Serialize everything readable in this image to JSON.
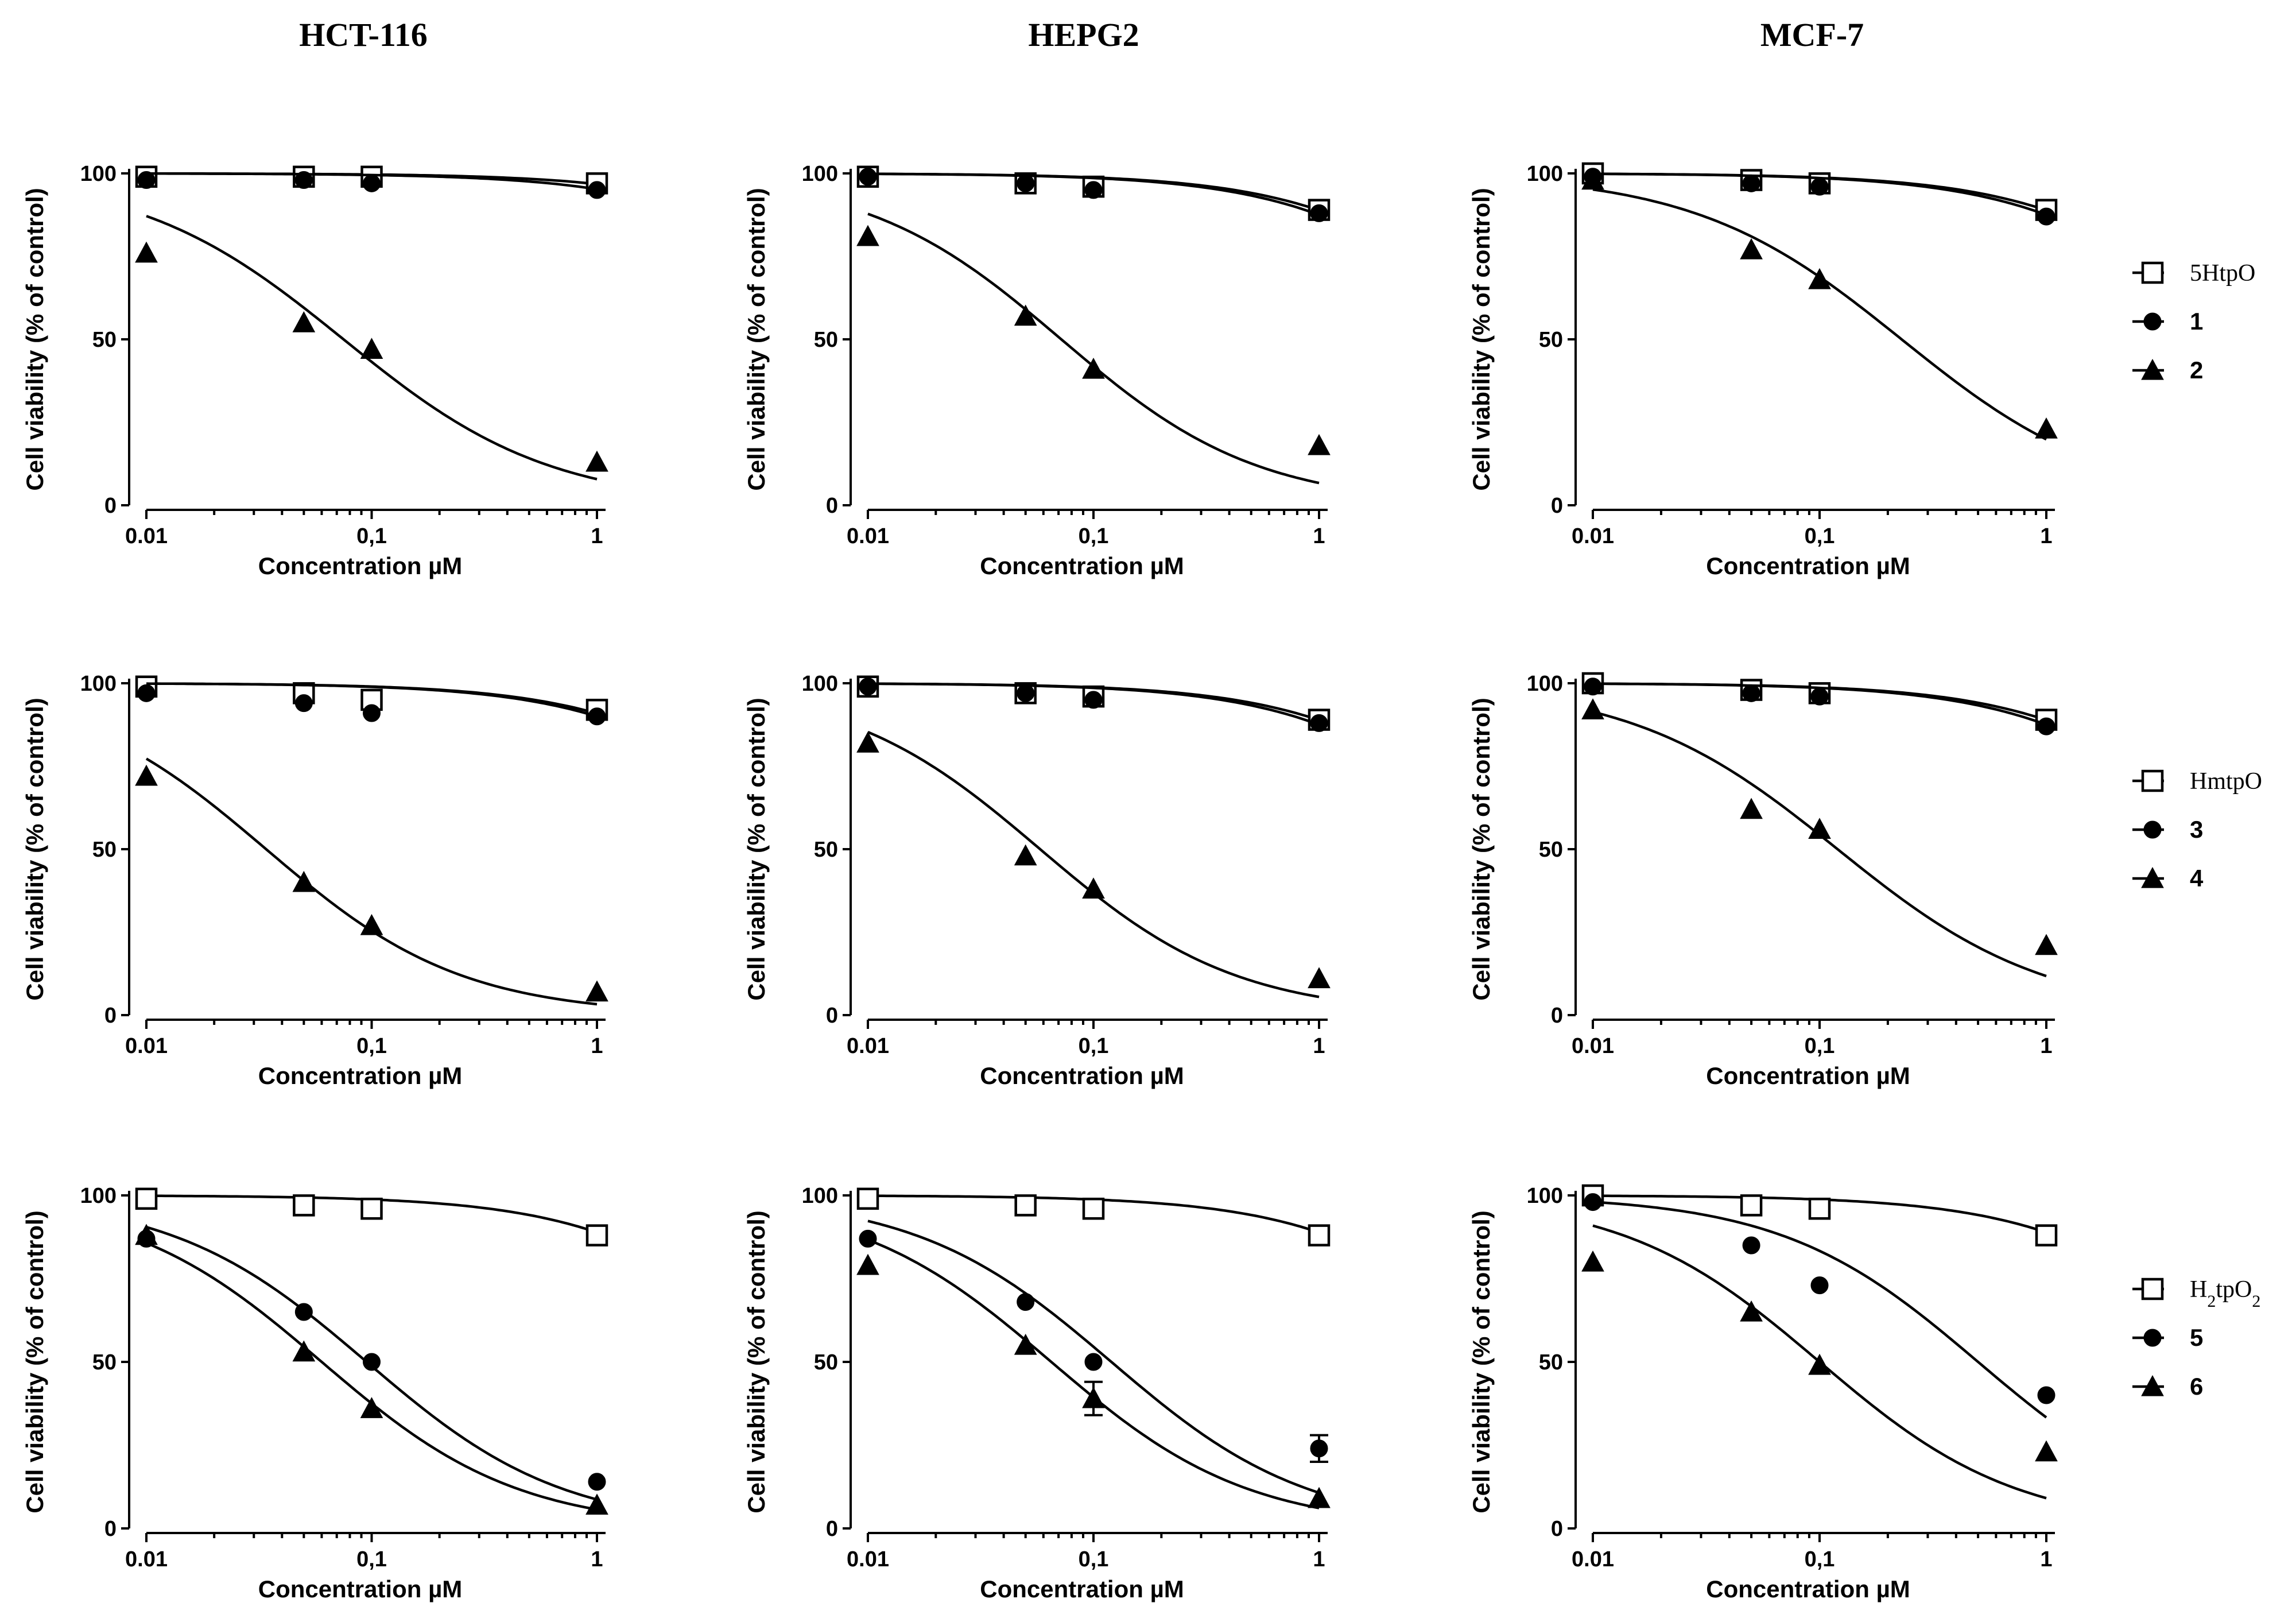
{
  "column_titles": [
    "HCT-116",
    "HEPG2",
    "MCF-7"
  ],
  "legends": [
    {
      "items": [
        {
          "label": "5HtpO",
          "marker": "square"
        },
        {
          "label": "1",
          "marker": "circle"
        },
        {
          "label": "2",
          "marker": "triangle"
        }
      ]
    },
    {
      "items": [
        {
          "label": "HmtpO",
          "marker": "square"
        },
        {
          "label": "3",
          "marker": "circle"
        },
        {
          "label": "4",
          "marker": "triangle"
        }
      ]
    },
    {
      "items": [
        {
          "label": "H2tpO2",
          "label_parts": [
            "H",
            "2",
            "tpO",
            "2"
          ],
          "marker": "square"
        },
        {
          "label": "5",
          "marker": "circle"
        },
        {
          "label": "6",
          "marker": "triangle"
        }
      ]
    }
  ],
  "chart_data": [
    {
      "panel": "HCT-116 / 5HtpO, 1, 2",
      "type": "line",
      "xscale": "log",
      "xlim": [
        0.01,
        1
      ],
      "ylim": [
        0,
        100
      ],
      "xlabel": "Concentration µM",
      "ylabel": "Cell viability (% of control)",
      "xticks": [
        "0.01",
        "0,1",
        "1"
      ],
      "yticks": [
        "0",
        "50",
        "100"
      ],
      "series": [
        {
          "name": "5HtpO",
          "marker": "square",
          "x": [
            0.01,
            0.05,
            0.1,
            1
          ],
          "y": [
            99,
            99,
            99,
            97
          ],
          "fit": {
            "top": 100,
            "ic50": 30,
            "hill": 1
          }
        },
        {
          "name": "1",
          "marker": "circle",
          "x": [
            0.01,
            0.05,
            0.1,
            1
          ],
          "y": [
            98,
            98,
            97,
            95
          ],
          "fit": {
            "top": 100,
            "ic50": 20,
            "hill": 1
          }
        },
        {
          "name": "2",
          "marker": "triangle",
          "x": [
            0.01,
            0.05,
            0.1,
            1
          ],
          "y": [
            76,
            55,
            47,
            13
          ],
          "fit": {
            "top": 100,
            "ic50": 0.075,
            "hill": 0.95
          }
        }
      ]
    },
    {
      "panel": "HEPG2 / 5HtpO, 1, 2",
      "type": "line",
      "xscale": "log",
      "xlim": [
        0.01,
        1
      ],
      "ylim": [
        0,
        100
      ],
      "xlabel": "Concentration µM",
      "ylabel": "Cell viability (% of control)",
      "xticks": [
        "0.01",
        "0,1",
        "1"
      ],
      "yticks": [
        "0",
        "50",
        "100"
      ],
      "series": [
        {
          "name": "5HtpO",
          "marker": "square",
          "x": [
            0.01,
            0.05,
            0.1,
            1
          ],
          "y": [
            99,
            97,
            96,
            89
          ],
          "fit": {
            "top": 100,
            "ic50": 8,
            "hill": 1
          }
        },
        {
          "name": "1",
          "marker": "circle",
          "x": [
            0.01,
            0.05,
            0.1,
            1
          ],
          "y": [
            99,
            97,
            95,
            88
          ],
          "fit": {
            "top": 100,
            "ic50": 7,
            "hill": 1
          }
        },
        {
          "name": "2",
          "marker": "triangle",
          "x": [
            0.01,
            0.05,
            0.1,
            1
          ],
          "y": [
            81,
            57,
            41,
            18
          ],
          "fit": {
            "top": 100,
            "ic50": 0.072,
            "hill": 1.0
          }
        }
      ]
    },
    {
      "panel": "MCF-7 / 5HtpO, 1, 2",
      "type": "line",
      "xscale": "log",
      "xlim": [
        0.01,
        1
      ],
      "ylim": [
        0,
        100
      ],
      "xlabel": "Concentration µM",
      "ylabel": "Cell viability (% of control)",
      "xticks": [
        "0.01",
        "0,1",
        "1"
      ],
      "yticks": [
        "0",
        "50",
        "100"
      ],
      "series": [
        {
          "name": "5HtpO",
          "marker": "square",
          "x": [
            0.01,
            0.05,
            0.1,
            1
          ],
          "y": [
            100,
            98,
            97,
            89
          ],
          "fit": {
            "top": 100,
            "ic50": 8,
            "hill": 1
          }
        },
        {
          "name": "1",
          "marker": "circle",
          "x": [
            0.01,
            0.05,
            0.1,
            1
          ],
          "y": [
            99,
            97,
            96,
            87
          ],
          "fit": {
            "top": 100,
            "ic50": 7,
            "hill": 1
          }
        },
        {
          "name": "2",
          "marker": "triangle",
          "x": [
            0.01,
            0.05,
            0.1,
            1
          ],
          "y": [
            98,
            77,
            68,
            23
          ],
          "fit": {
            "top": 100,
            "ic50": 0.23,
            "hill": 0.95
          }
        }
      ]
    },
    {
      "panel": "HCT-116 / HmtpO, 3, 4",
      "type": "line",
      "xscale": "log",
      "xlim": [
        0.01,
        1
      ],
      "ylim": [
        0,
        100
      ],
      "xlabel": "Concentration µM",
      "ylabel": "Cell viability (% of control)",
      "xticks": [
        "0.01",
        "0,1",
        "1"
      ],
      "yticks": [
        "0",
        "50",
        "100"
      ],
      "series": [
        {
          "name": "HmtpO",
          "marker": "square",
          "x": [
            0.01,
            0.05,
            0.1,
            1
          ],
          "y": [
            99,
            97,
            95,
            92
          ],
          "fit": {
            "top": 100,
            "ic50": 10,
            "hill": 1
          }
        },
        {
          "name": "3",
          "marker": "circle",
          "x": [
            0.01,
            0.05,
            0.1,
            1
          ],
          "y": [
            97,
            94,
            91,
            90
          ],
          "fit": {
            "top": 100,
            "ic50": 9,
            "hill": 1
          }
        },
        {
          "name": "4",
          "marker": "triangle",
          "x": [
            0.01,
            0.05,
            0.1,
            1
          ],
          "y": [
            72,
            40,
            27,
            7
          ],
          "fit": {
            "top": 100,
            "ic50": 0.034,
            "hill": 1.0
          }
        }
      ]
    },
    {
      "panel": "HEPG2 / HmtpO, 3, 4",
      "type": "line",
      "xscale": "log",
      "xlim": [
        0.01,
        1
      ],
      "ylim": [
        0,
        100
      ],
      "xlabel": "Concentration µM",
      "ylabel": "Cell viability (% of control)",
      "xticks": [
        "0.01",
        "0,1",
        "1"
      ],
      "yticks": [
        "0",
        "50",
        "100"
      ],
      "series": [
        {
          "name": "HmtpO",
          "marker": "square",
          "x": [
            0.01,
            0.05,
            0.1,
            1
          ],
          "y": [
            99,
            97,
            96,
            89
          ],
          "fit": {
            "top": 100,
            "ic50": 8,
            "hill": 1
          }
        },
        {
          "name": "3",
          "marker": "circle",
          "x": [
            0.01,
            0.05,
            0.1,
            1
          ],
          "y": [
            99,
            97,
            95,
            88
          ],
          "fit": {
            "top": 100,
            "ic50": 7,
            "hill": 1
          }
        },
        {
          "name": "4",
          "marker": "triangle",
          "x": [
            0.01,
            0.05,
            0.1,
            1
          ],
          "y": [
            82,
            48,
            38,
            11
          ],
          "fit": {
            "top": 100,
            "ic50": 0.058,
            "hill": 1.0
          }
        }
      ]
    },
    {
      "panel": "MCF-7 / HmtpO, 3, 4",
      "type": "line",
      "xscale": "log",
      "xlim": [
        0.01,
        1
      ],
      "ylim": [
        0,
        100
      ],
      "xlabel": "Concentration µM",
      "ylabel": "Cell viability (% of control)",
      "xticks": [
        "0.01",
        "0,1",
        "1"
      ],
      "yticks": [
        "0",
        "50",
        "100"
      ],
      "series": [
        {
          "name": "HmtpO",
          "marker": "square",
          "x": [
            0.01,
            0.05,
            0.1,
            1
          ],
          "y": [
            100,
            98,
            97,
            89
          ],
          "fit": {
            "top": 100,
            "ic50": 8,
            "hill": 1
          }
        },
        {
          "name": "3",
          "marker": "circle",
          "x": [
            0.01,
            0.05,
            0.1,
            1
          ],
          "y": [
            99,
            97,
            96,
            87
          ],
          "fit": {
            "top": 100,
            "ic50": 7,
            "hill": 1
          }
        },
        {
          "name": "4",
          "marker": "triangle",
          "x": [
            0.01,
            0.05,
            0.1,
            1
          ],
          "y": [
            92,
            62,
            56,
            21
          ],
          "fit": {
            "top": 100,
            "ic50": 0.12,
            "hill": 0.95
          }
        }
      ]
    },
    {
      "panel": "HCT-116 / H2tpO2, 5, 6",
      "type": "line",
      "xscale": "log",
      "xlim": [
        0.01,
        1
      ],
      "ylim": [
        0,
        100
      ],
      "xlabel": "Concentration µM",
      "ylabel": "Cell viability (% of control)",
      "xticks": [
        "0.01",
        "0,1",
        "1"
      ],
      "yticks": [
        "0",
        "50",
        "100"
      ],
      "series": [
        {
          "name": "H2tpO2",
          "marker": "square",
          "x": [
            0.01,
            0.05,
            0.1,
            1
          ],
          "y": [
            99,
            97,
            96,
            88
          ],
          "fit": {
            "top": 100,
            "ic50": 8,
            "hill": 1
          }
        },
        {
          "name": "5",
          "marker": "circle",
          "x": [
            0.01,
            0.05,
            0.1,
            1
          ],
          "y": [
            87,
            65,
            50,
            14
          ],
          "fit": {
            "top": 100,
            "ic50": 0.095,
            "hill": 1.0
          }
        },
        {
          "name": "6",
          "marker": "triangle",
          "x": [
            0.01,
            0.05,
            0.1,
            1
          ],
          "y": [
            88,
            53,
            36,
            7
          ],
          "fit": {
            "top": 100,
            "ic50": 0.06,
            "hill": 1.0
          }
        }
      ]
    },
    {
      "panel": "HEPG2 / H2tpO2, 5, 6",
      "type": "line",
      "xscale": "log",
      "xlim": [
        0.01,
        1
      ],
      "ylim": [
        0,
        100
      ],
      "xlabel": "Concentration µM",
      "ylabel": "Cell viability (% of control)",
      "xticks": [
        "0.01",
        "0,1",
        "1"
      ],
      "yticks": [
        "0",
        "50",
        "100"
      ],
      "series": [
        {
          "name": "H2tpO2",
          "marker": "square",
          "x": [
            0.01,
            0.05,
            0.1,
            1
          ],
          "y": [
            99,
            97,
            96,
            88
          ],
          "fit": {
            "top": 100,
            "ic50": 8,
            "hill": 1
          }
        },
        {
          "name": "5",
          "marker": "circle",
          "x": [
            0.01,
            0.05,
            0.1,
            1
          ],
          "y": [
            87,
            68,
            50,
            24
          ],
          "yerr": [
            0,
            0,
            0,
            4
          ],
          "fit": {
            "top": 100,
            "ic50": 0.12,
            "hill": 1.0
          }
        },
        {
          "name": "6",
          "marker": "triangle",
          "x": [
            0.01,
            0.05,
            0.1,
            1
          ],
          "y": [
            79,
            55,
            39,
            9
          ],
          "yerr": [
            0,
            0,
            5,
            0
          ],
          "fit": {
            "top": 100,
            "ic50": 0.065,
            "hill": 1.0
          }
        }
      ]
    },
    {
      "panel": "MCF-7 / H2tpO2, 5, 6",
      "type": "line",
      "xscale": "log",
      "xlim": [
        0.01,
        1
      ],
      "ylim": [
        0,
        100
      ],
      "xlabel": "Concentration µM",
      "ylabel": "Cell viability (% of control)",
      "xticks": [
        "0.01",
        "0,1",
        "1"
      ],
      "yticks": [
        "0",
        "50",
        "100"
      ],
      "series": [
        {
          "name": "H2tpO2",
          "marker": "square",
          "x": [
            0.01,
            0.05,
            0.1,
            1
          ],
          "y": [
            100,
            97,
            96,
            88
          ],
          "fit": {
            "top": 100,
            "ic50": 8,
            "hill": 1
          }
        },
        {
          "name": "5",
          "marker": "circle",
          "x": [
            0.01,
            0.05,
            0.1,
            1
          ],
          "y": [
            98,
            85,
            73,
            40
          ],
          "fit": {
            "top": 100,
            "ic50": 0.5,
            "hill": 1.0
          }
        },
        {
          "name": "6",
          "marker": "triangle",
          "x": [
            0.01,
            0.05,
            0.1,
            1
          ],
          "y": [
            80,
            65,
            49,
            23
          ],
          "fit": {
            "top": 100,
            "ic50": 0.1,
            "hill": 1.0
          }
        }
      ]
    }
  ]
}
